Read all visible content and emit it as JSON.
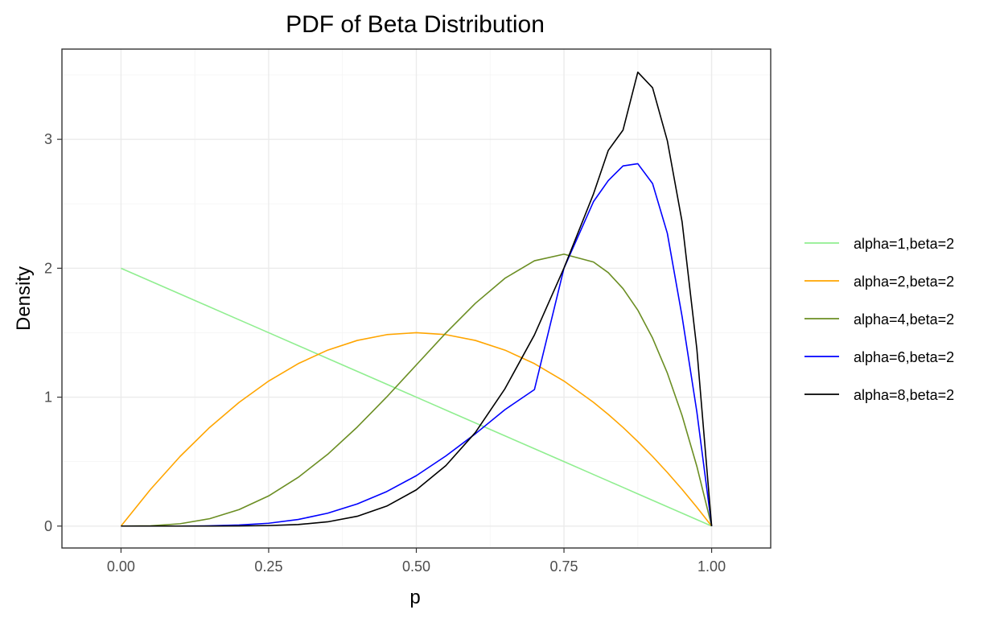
{
  "chart_data": {
    "type": "line",
    "title": "PDF of Beta Distribution",
    "xlabel": "p",
    "ylabel": "Density",
    "xlim": [
      -0.1,
      1.1
    ],
    "ylim": [
      -0.17,
      3.7
    ],
    "x_ticks": [
      0,
      0.25,
      0.5,
      0.75,
      1.0
    ],
    "x_tick_labels": [
      "0.00",
      "0.25",
      "0.50",
      "0.75",
      "1.00"
    ],
    "y_ticks": [
      0,
      1,
      2,
      3
    ],
    "y_tick_labels": [
      "0",
      "1",
      "2",
      "3"
    ],
    "grid": true,
    "legend_position": "right",
    "x": [
      0,
      0.05,
      0.1,
      0.15,
      0.2,
      0.25,
      0.3,
      0.35,
      0.4,
      0.45,
      0.5,
      0.55,
      0.6,
      0.65,
      0.7,
      0.75,
      0.8,
      0.825,
      0.85,
      0.875,
      0.9,
      0.925,
      0.95,
      0.975,
      1.0
    ],
    "series": [
      {
        "name": "alpha=1,beta=2",
        "color": "#90ee90",
        "values": [
          2,
          1.9,
          1.8,
          1.7,
          1.6,
          1.5,
          1.4,
          1.3,
          1.2,
          1.1,
          1.0,
          0.9,
          0.8,
          0.7,
          0.6,
          0.5,
          0.4,
          0.35,
          0.3,
          0.25,
          0.2,
          0.15,
          0.1,
          0.05,
          0
        ]
      },
      {
        "name": "alpha=2,beta=2",
        "color": "#ffa500",
        "values": [
          0,
          0.285,
          0.54,
          0.765,
          0.96,
          1.125,
          1.26,
          1.365,
          1.44,
          1.485,
          1.5,
          1.485,
          1.44,
          1.365,
          1.26,
          1.125,
          0.96,
          0.866,
          0.765,
          0.656,
          0.54,
          0.416,
          0.285,
          0.146,
          0
        ]
      },
      {
        "name": "alpha=4,beta=2",
        "color": "#6b8e23",
        "values": [
          0,
          0.002,
          0.018,
          0.057,
          0.128,
          0.234,
          0.378,
          0.557,
          0.768,
          1.002,
          1.25,
          1.498,
          1.728,
          1.922,
          2.058,
          2.109,
          2.048,
          1.966,
          1.842,
          1.675,
          1.458,
          1.187,
          0.857,
          0.463,
          0
        ]
      },
      {
        "name": "alpha=6,beta=2",
        "color": "#0000ff",
        "values": [
          0,
          0,
          0,
          0.002,
          0.008,
          0.022,
          0.051,
          0.1,
          0.172,
          0.268,
          0.391,
          0.544,
          0.716,
          0.903,
          1.059,
          2.0,
          2.517,
          2.68,
          2.794,
          2.811,
          2.657,
          2.271,
          1.625,
          0.885,
          0
        ]
      },
      {
        "name": "alpha=8,beta=2",
        "color": "#000000",
        "values": [
          0,
          0,
          0,
          0,
          0.001,
          0.004,
          0.012,
          0.033,
          0.076,
          0.155,
          0.281,
          0.469,
          0.726,
          1.065,
          1.483,
          2.002,
          2.577,
          2.914,
          3.072,
          3.521,
          3.4,
          2.989,
          2.36,
          1.372,
          0
        ]
      }
    ]
  }
}
